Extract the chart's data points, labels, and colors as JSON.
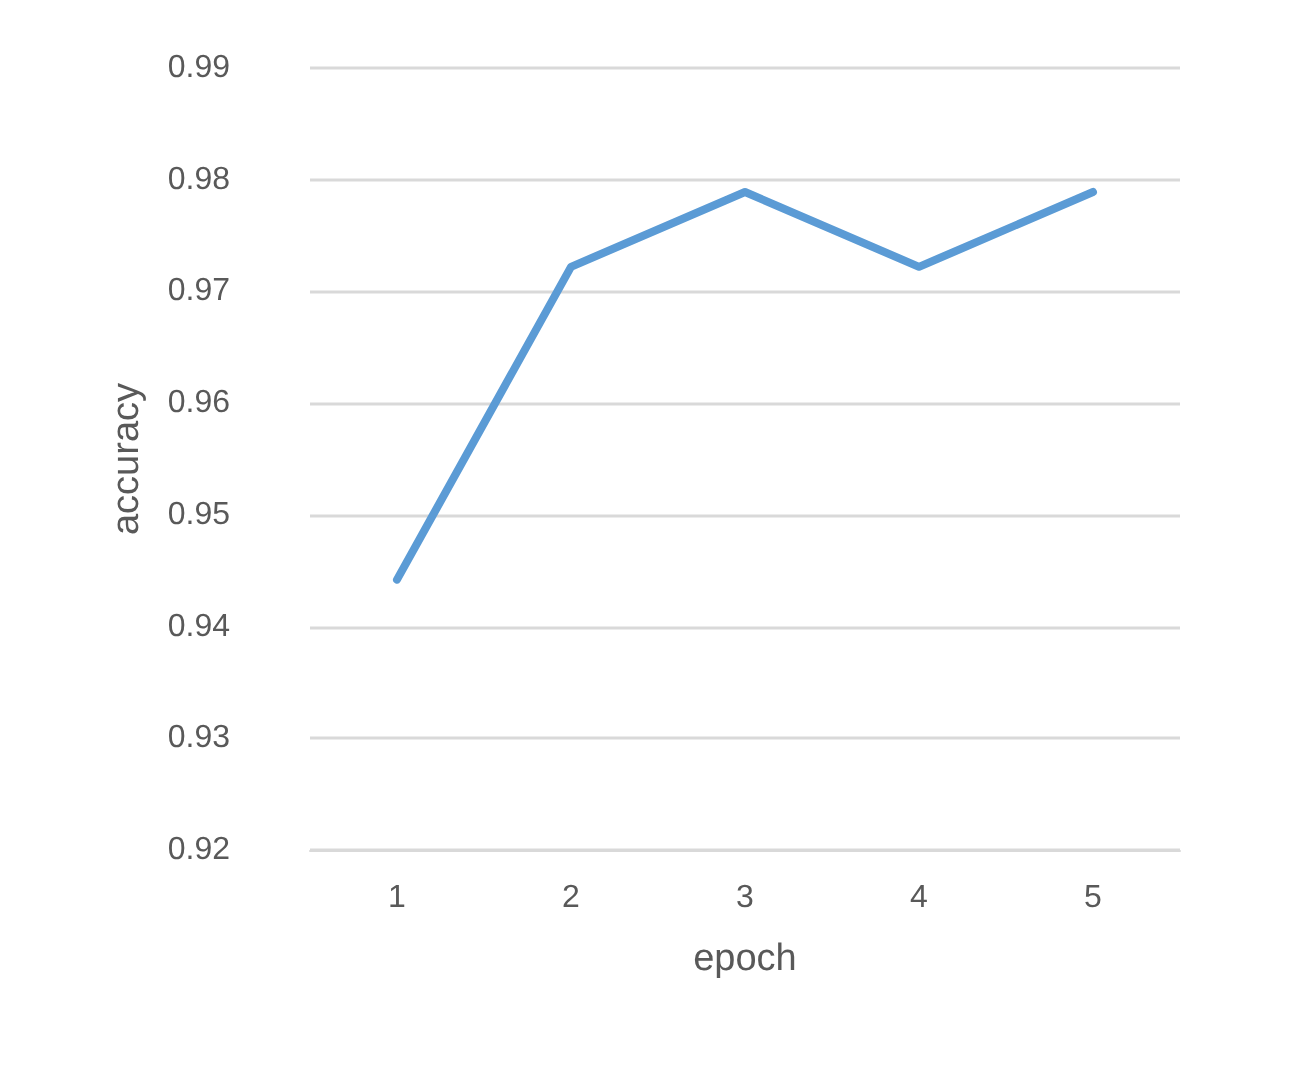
{
  "chart_data": {
    "type": "line",
    "xlabel": "epoch",
    "ylabel": "accuracy",
    "categories": [
      "1",
      "2",
      "3",
      "4",
      "5"
    ],
    "series": [
      {
        "color": "#5b9bd5",
        "values": [
          0.9442,
          0.9722,
          0.9789,
          0.9722,
          0.9789
        ]
      }
    ],
    "ylim": [
      0.92,
      0.99
    ],
    "yticks": [
      0.92,
      0.93,
      0.94,
      0.95,
      0.96,
      0.97,
      0.98,
      0.99
    ],
    "grid": "y",
    "marker": "none",
    "line_style": "solid"
  }
}
